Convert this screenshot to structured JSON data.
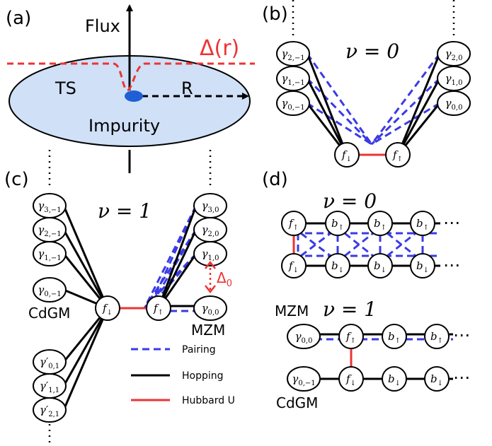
{
  "panels": {
    "a": {
      "label": "(a)",
      "flux": "Flux",
      "delta": "Δ(r)",
      "ts": "TS",
      "r": "R",
      "impurity": "Impurity",
      "colors": {
        "disk": "#cfe0f7",
        "impurity": "#1f5fd6",
        "delta": "#ee3333"
      }
    },
    "b": {
      "label": "(b)",
      "nu": "ν = 0",
      "left_nodes": [
        {
          "sym": "γ",
          "sub": "2,−1"
        },
        {
          "sym": "γ",
          "sub": "1,−1"
        },
        {
          "sym": "γ",
          "sub": "0,−1"
        }
      ],
      "right_nodes": [
        {
          "sym": "γ",
          "sub": "2,0"
        },
        {
          "sym": "γ",
          "sub": "1,0"
        },
        {
          "sym": "γ",
          "sub": "0,0"
        }
      ],
      "f_down": {
        "sym": "f",
        "sub": "↓"
      },
      "f_up": {
        "sym": "f",
        "sub": "↑"
      }
    },
    "c": {
      "label": "(c)",
      "nu": "ν = 1",
      "left_nodes": [
        {
          "sym": "γ",
          "sub": "3,−1"
        },
        {
          "sym": "γ",
          "sub": "2,−1"
        },
        {
          "sym": "γ",
          "sub": "1,−1"
        },
        {
          "sym": "γ",
          "sub": "0,−1"
        }
      ],
      "left_prime_nodes": [
        {
          "sym": "γ′",
          "sub": "0,1"
        },
        {
          "sym": "γ′",
          "sub": "1,1"
        },
        {
          "sym": "γ′",
          "sub": "2,1"
        }
      ],
      "right_nodes": [
        {
          "sym": "γ",
          "sub": "3,0"
        },
        {
          "sym": "γ",
          "sub": "2,0"
        },
        {
          "sym": "γ",
          "sub": "1,0"
        },
        {
          "sym": "γ",
          "sub": "0,0"
        }
      ],
      "f_down": {
        "sym": "f",
        "sub": "↓"
      },
      "f_up": {
        "sym": "f",
        "sub": "↑"
      },
      "cdgm": "CdGM",
      "mzm": "MZM",
      "delta0": {
        "sym": "Δ",
        "sub": "0"
      },
      "legend": [
        {
          "label": "Pairing",
          "color": "#3a3ae6",
          "style": "dashed"
        },
        {
          "label": "Hopping",
          "color": "#000000",
          "style": "solid"
        },
        {
          "label": "Hubbard U",
          "color": "#ee3333",
          "style": "solid"
        }
      ]
    },
    "d": {
      "label": "(d)",
      "nu0": "ν = 0",
      "nu1": "ν = 1",
      "mzm": "MZM",
      "cdgm": "CdGM",
      "top_row": [
        {
          "sym": "f",
          "sub": "↑"
        },
        {
          "sym": "b",
          "sub": "↑"
        },
        {
          "sym": "b",
          "sub": "↑"
        },
        {
          "sym": "b",
          "sub": "↑"
        }
      ],
      "bottom_row": [
        {
          "sym": "f",
          "sub": "↓"
        },
        {
          "sym": "b",
          "sub": "↓"
        },
        {
          "sym": "b",
          "sub": "↓"
        },
        {
          "sym": "b",
          "sub": "↓"
        }
      ],
      "nu1_top_row": [
        {
          "sym": "γ",
          "sub": "0,0"
        },
        {
          "sym": "f",
          "sub": "↑"
        },
        {
          "sym": "b",
          "sub": "↑"
        },
        {
          "sym": "b",
          "sub": "↑"
        }
      ],
      "nu1_bottom_row": [
        {
          "sym": "γ",
          "sub": "0,−1"
        },
        {
          "sym": "f",
          "sub": "↓"
        },
        {
          "sym": "b",
          "sub": "↓"
        },
        {
          "sym": "b",
          "sub": "↓"
        }
      ],
      "ellipsis": "⋯"
    }
  }
}
